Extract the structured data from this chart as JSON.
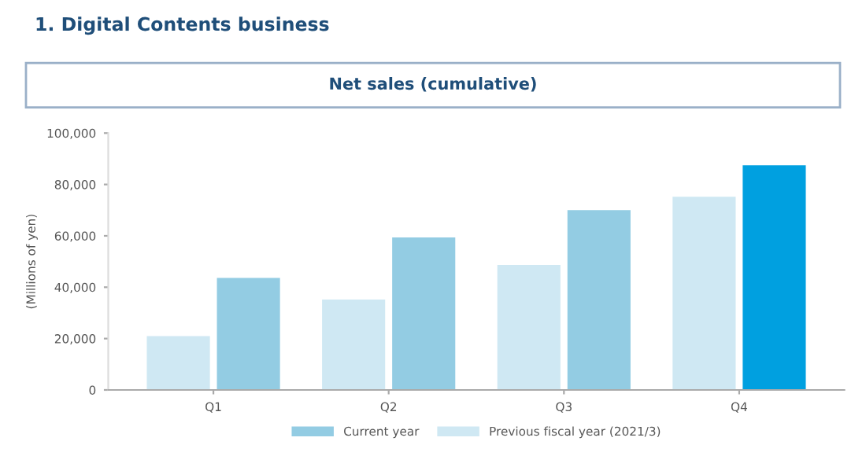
{
  "chart_data": {
    "type": "bar",
    "title": "1. Digital Contents business",
    "subtitle": "Net sales (cumulative)",
    "ylabel": "(Millions of yen)",
    "categories": [
      "Q1",
      "Q2",
      "Q3",
      "Q4"
    ],
    "series": [
      {
        "name": "Previous fiscal year (2021/3)",
        "color": "#cfe8f3",
        "values": [
          21000,
          35200,
          48700,
          75200
        ]
      },
      {
        "name": "Current year",
        "color": "#93cce3",
        "colors": [
          "#93cce3",
          "#93cce3",
          "#93cce3",
          "#00a0e0"
        ],
        "values": [
          43600,
          59400,
          70000,
          87500
        ]
      }
    ],
    "ylim": [
      0,
      100000
    ],
    "yticks": [
      {
        "value": 0,
        "label": "0"
      },
      {
        "value": 20000,
        "label": "20,000"
      },
      {
        "value": 40000,
        "label": "40,000"
      },
      {
        "value": 60000,
        "label": "60,000"
      },
      {
        "value": 80000,
        "label": "80,000"
      },
      {
        "value": 100000,
        "label": "100,000"
      }
    ],
    "grid": false,
    "legend": "bottom"
  }
}
